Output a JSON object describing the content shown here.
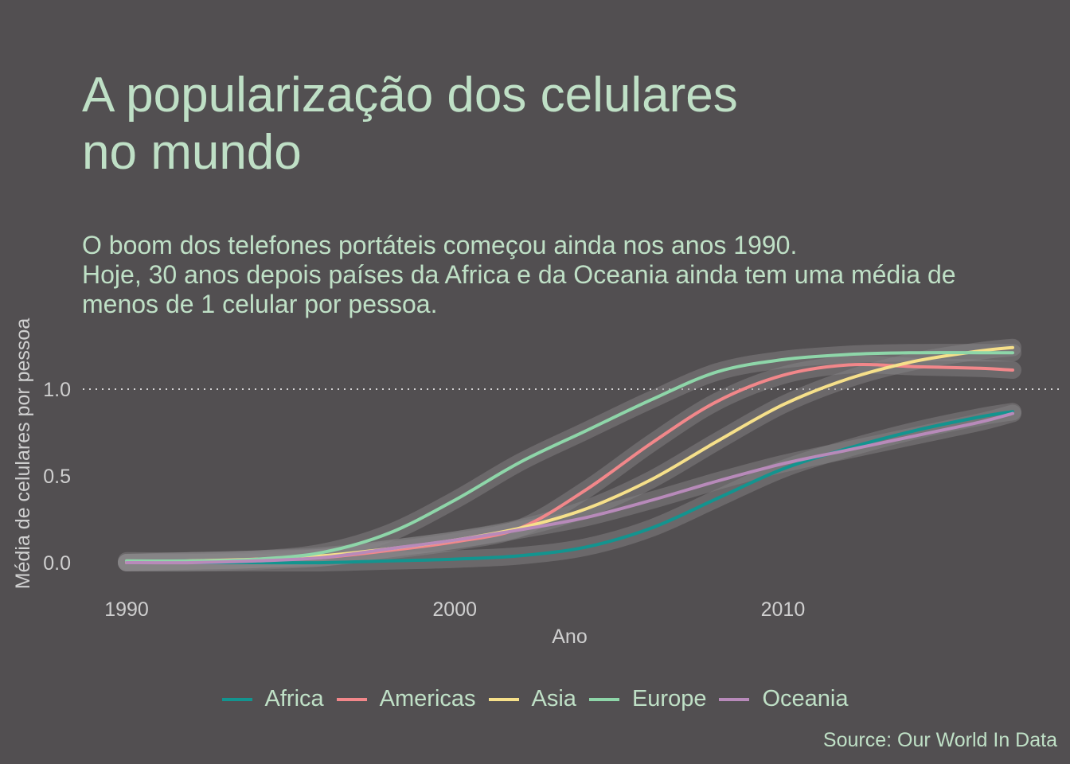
{
  "title_lines": [
    "A popularização dos celulares",
    "no mundo"
  ],
  "subtitle_lines": [
    "O boom dos telefones portáteis começou ainda nos anos 1990.",
    "Hoje, 30 anos depois países da Africa e da Oceania ainda tem uma média de",
    "menos de 1 celular por pessoa."
  ],
  "caption": "Source: Our World In Data",
  "colors": {
    "background": "#524f51",
    "text": "#bfe0c6",
    "axis_text": "#cfcfcf",
    "confidence_band": "#8a8789",
    "reference_line": "#ffffff"
  },
  "chart_data": {
    "type": "line",
    "xlabel": "Ano",
    "ylabel": "Média de celulares por pessoa",
    "xlim": [
      1990,
      2017
    ],
    "ylim": [
      -0.05,
      1.3
    ],
    "xticks": [
      1990,
      2000,
      2010
    ],
    "yticks": [
      0.0,
      0.5,
      1.0
    ],
    "ytick_labels": [
      "0.0",
      "0.5",
      "1.0"
    ],
    "reference_line": {
      "y": 1.0,
      "style": "dotted"
    },
    "grid": false,
    "legend_position": "bottom",
    "x": [
      1990,
      1992,
      1994,
      1996,
      1998,
      2000,
      2002,
      2004,
      2006,
      2008,
      2010,
      2012,
      2014,
      2016,
      2017
    ],
    "series": [
      {
        "name": "Africa",
        "color": "#13948f",
        "values": [
          0.0,
          0.0,
          0.0,
          0.0,
          0.01,
          0.02,
          0.04,
          0.09,
          0.2,
          0.37,
          0.54,
          0.66,
          0.76,
          0.84,
          0.87
        ]
      },
      {
        "name": "Americas",
        "color": "#f2878a",
        "values": [
          0.0,
          0.01,
          0.02,
          0.03,
          0.07,
          0.12,
          0.2,
          0.42,
          0.69,
          0.93,
          1.08,
          1.14,
          1.13,
          1.12,
          1.11
        ]
      },
      {
        "name": "Asia",
        "color": "#f6e08a",
        "values": [
          0.0,
          0.01,
          0.02,
          0.04,
          0.08,
          0.13,
          0.2,
          0.31,
          0.48,
          0.7,
          0.91,
          1.06,
          1.16,
          1.22,
          1.24
        ]
      },
      {
        "name": "Europe",
        "color": "#8ed6a9",
        "values": [
          0.01,
          0.01,
          0.02,
          0.06,
          0.17,
          0.36,
          0.58,
          0.76,
          0.94,
          1.1,
          1.17,
          1.2,
          1.21,
          1.21,
          1.21
        ]
      },
      {
        "name": "Oceania",
        "color": "#b88aba",
        "values": [
          0.0,
          0.0,
          0.01,
          0.03,
          0.08,
          0.13,
          0.19,
          0.26,
          0.36,
          0.47,
          0.57,
          0.65,
          0.73,
          0.81,
          0.86
        ]
      }
    ]
  }
}
